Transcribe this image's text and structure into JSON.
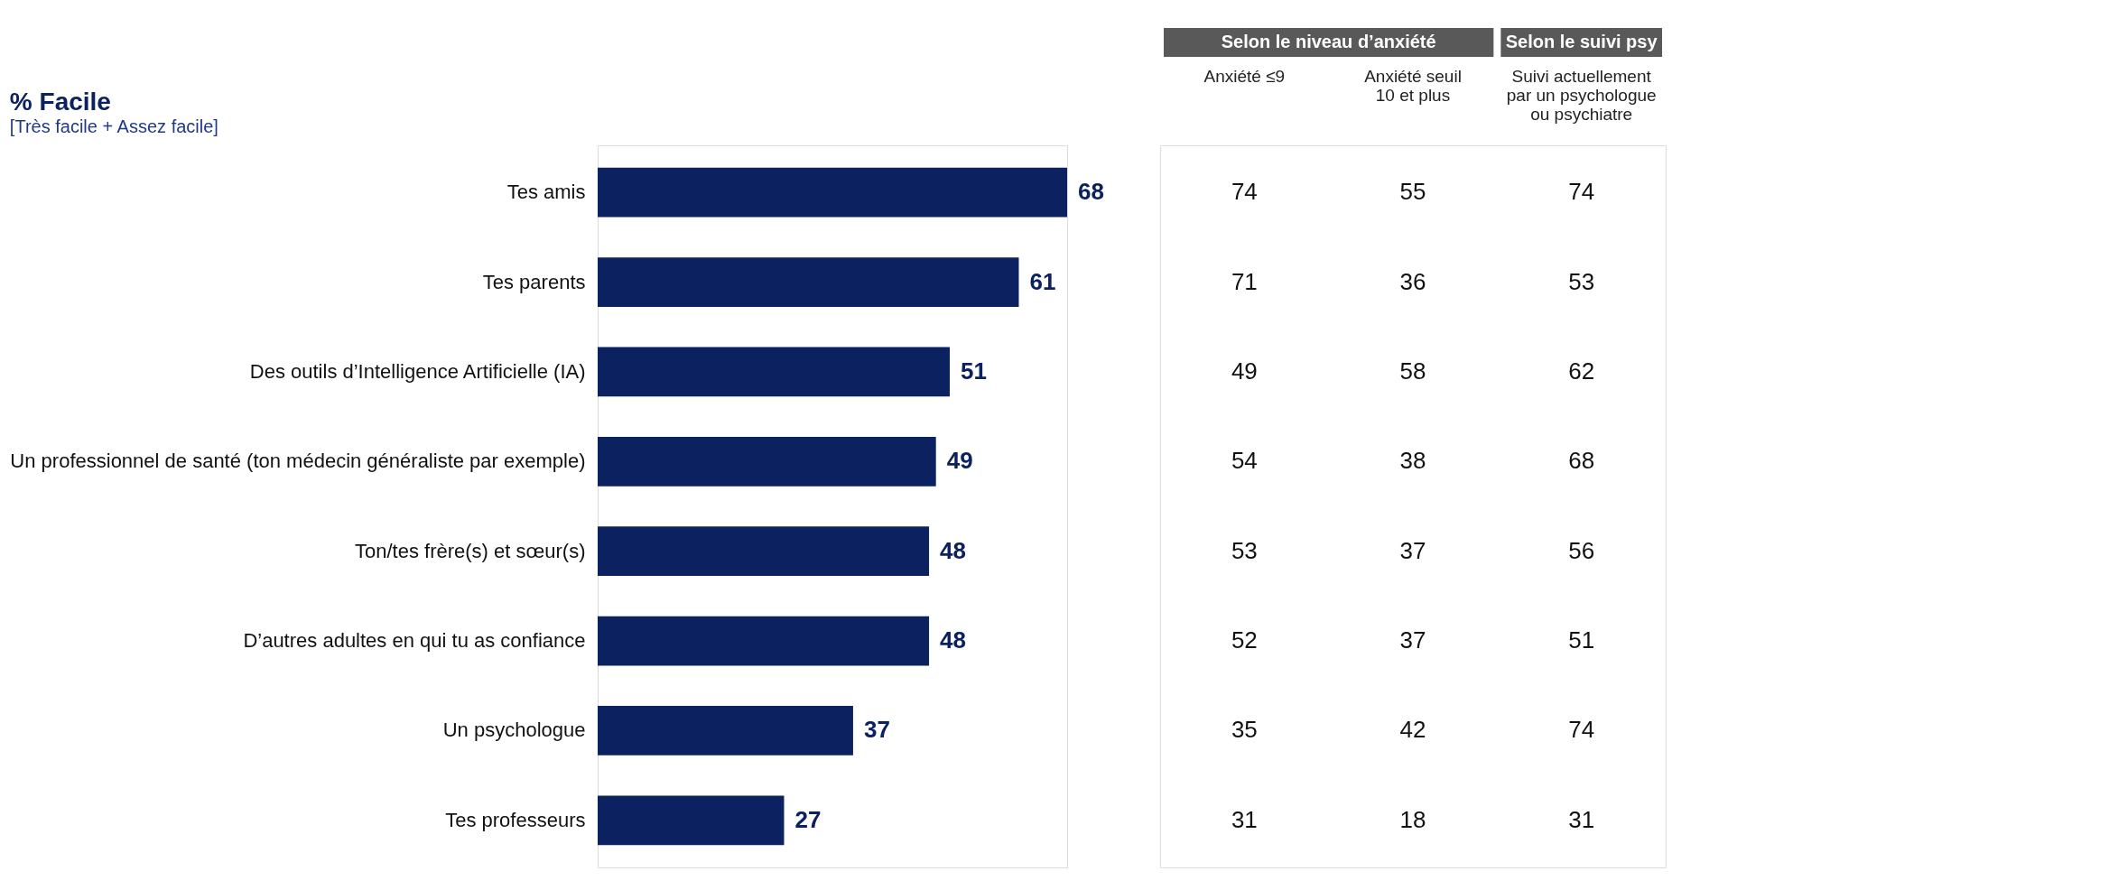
{
  "chart_data": [
    {
      "type": "bar",
      "orientation": "horizontal",
      "title": "% Facile",
      "subtitle": "[Très facile + Assez facile]",
      "categories": [
        "Tes amis",
        "Tes parents",
        "Des outils d’Intelligence Artificielle (IA)",
        "Un professionnel de santé (ton médecin généraliste par exemple)",
        "Ton/tes frère(s) et sœur(s)",
        "D’autres adultes en qui tu as confiance",
        "Un psychologue",
        "Tes professeurs"
      ],
      "values": [
        68,
        61,
        51,
        49,
        48,
        48,
        37,
        27
      ],
      "color": "#0b2160",
      "data_labels": true
    },
    {
      "type": "other",
      "annotations": [
        "Selon le niveau d’anxiété",
        "Selon le suivi psy",
        "Anxiété ≤9",
        "Anxiété seuil\n10 et plus",
        "Suivi actuellement\npar un psychologue\nou psychiatre",
        "74",
        "55",
        "74",
        "71",
        "36",
        "53",
        "49",
        "58",
        "62",
        "54",
        "38",
        "68",
        "53",
        "37",
        "56",
        "52",
        "37",
        "51",
        "35",
        "42",
        "74",
        "31",
        "18",
        "31"
      ]
    }
  ]
}
